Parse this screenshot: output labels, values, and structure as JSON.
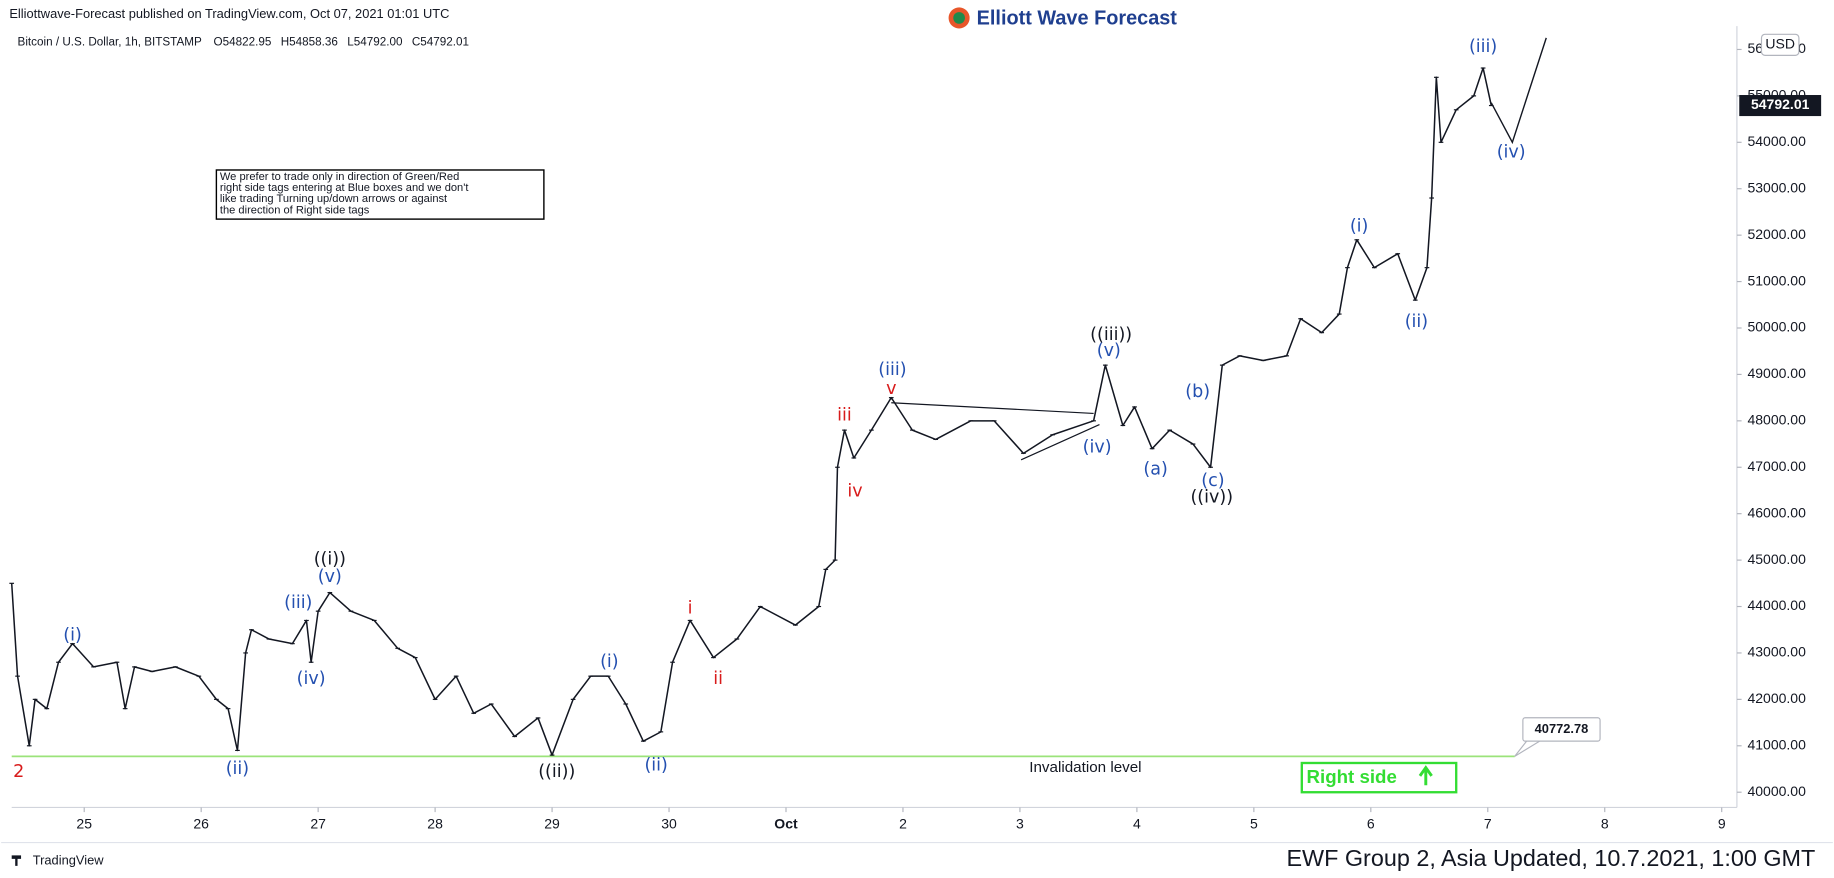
{
  "header": {
    "published": "Elliottwave-Forecast published on TradingView.com, Oct 07, 2021 01:01 UTC",
    "logo": "Elliott Wave Forecast",
    "symbol": "Bitcoin / U.S. Dollar, 1h, BITSTAMP",
    "ohlc": [
      "O54822.95",
      "H54858.36",
      "L54792.00",
      "C54792.01"
    ]
  },
  "note": [
    "We prefer to trade only in direction of Green/Red",
    "right side tags entering at Blue boxes and we don't",
    "like trading Turning up/down arrows or against",
    "the direction of Right side tags"
  ],
  "footer": {
    "brand": "TradingView",
    "update": "EWF Group 2, Asia Updated, 10.7.2021, 1:00 GMT"
  },
  "chart_data": {
    "type": "line",
    "color": "#131722",
    "grid": false,
    "currency": "USD",
    "x": [
      0.38,
      0.43,
      0.53,
      0.58,
      0.68,
      0.78,
      0.9,
      1.08,
      1.28,
      1.35,
      1.43,
      1.58,
      1.78,
      1.98,
      2.13,
      2.23,
      2.31,
      2.38,
      2.43,
      2.58,
      2.78,
      2.9,
      2.94,
      3.0,
      3.1,
      3.28,
      3.48,
      3.68,
      3.83,
      4.0,
      4.18,
      4.33,
      4.48,
      4.68,
      4.88,
      5.0,
      5.18,
      5.33,
      5.48,
      5.63,
      5.78,
      5.93,
      6.03,
      6.18,
      6.38,
      6.58,
      6.78,
      7.08,
      7.28,
      7.34,
      7.42,
      7.44,
      7.5,
      7.58,
      7.73,
      7.9,
      8.08,
      8.28,
      8.58,
      8.78,
      9.03,
      9.28,
      9.63,
      9.73,
      9.88,
      9.98,
      10.13,
      10.28,
      10.48,
      10.63,
      10.73,
      10.88,
      11.08,
      11.28,
      11.4,
      11.58,
      11.73,
      11.8,
      11.88,
      12.03,
      12.23,
      12.38,
      12.48,
      12.52,
      12.56,
      12.6,
      12.73,
      12.88,
      12.96,
      13.03
    ],
    "values": [
      44500,
      42500,
      41000,
      42000,
      41800,
      42800,
      43200,
      42700,
      42800,
      41800,
      42700,
      42600,
      42700,
      42500,
      42000,
      41800,
      40900,
      43000,
      43500,
      43300,
      43200,
      43700,
      42800,
      43900,
      44300,
      43900,
      43700,
      43100,
      42900,
      42000,
      42500,
      41700,
      41900,
      41200,
      41600,
      40800,
      42000,
      42500,
      42500,
      41900,
      41100,
      41300,
      42800,
      43700,
      42900,
      43300,
      44000,
      43600,
      44000,
      44800,
      45000,
      47000,
      47800,
      47200,
      47800,
      48500,
      47800,
      47600,
      48000,
      48000,
      47300,
      47700,
      48000,
      49200,
      47900,
      48300,
      47400,
      47800,
      47500,
      47000,
      49200,
      49400,
      49300,
      49400,
      50200,
      49900,
      50300,
      51300,
      51900,
      51300,
      51600,
      50600,
      51300,
      52800,
      55400,
      54000,
      54700,
      55000,
      55600,
      54792.01
    ],
    "projection": {
      "x": [
        13.03,
        13.21,
        13.5
      ],
      "values": [
        54850,
        54000,
        56250
      ]
    },
    "trendlines": [
      {
        "x": [
          7.9,
          9.63
        ],
        "values": [
          48390,
          48160
        ]
      },
      {
        "x": [
          9.01,
          9.68
        ],
        "values": [
          47160,
          47920
        ]
      }
    ],
    "last_price": 54792.01,
    "invalidation": {
      "value": 40772.78,
      "label": "Invalidation level",
      "color": "#9be37a"
    },
    "right_side": {
      "label": "Right side",
      "color": "#33dd33"
    },
    "waves": [
      {
        "text": "2",
        "x": 0.44,
        "price": 40430,
        "color": "#d81b1b"
      },
      {
        "text": "(i)",
        "x": 0.9,
        "price": 43380,
        "color": "#2450b0"
      },
      {
        "text": "(ii)",
        "x": 2.31,
        "price": 40500,
        "color": "#2450b0"
      },
      {
        "text": "(iii)",
        "x": 2.83,
        "price": 44080,
        "color": "#2450b0"
      },
      {
        "text": "(iv)",
        "x": 2.94,
        "price": 42440,
        "color": "#2450b0"
      },
      {
        "text": "(v)",
        "x": 3.1,
        "price": 44640,
        "color": "#2450b0"
      },
      {
        "text": "((i))",
        "x": 3.1,
        "price": 45010,
        "color": "#131722"
      },
      {
        "text": "((ii))",
        "x": 5.04,
        "price": 40430,
        "color": "#131722"
      },
      {
        "text": "(i)",
        "x": 5.49,
        "price": 42800,
        "color": "#2450b0"
      },
      {
        "text": "(ii)",
        "x": 5.89,
        "price": 40580,
        "color": "#2450b0"
      },
      {
        "text": "i",
        "x": 6.18,
        "price": 43960,
        "color": "#d81b1b"
      },
      {
        "text": "ii",
        "x": 6.42,
        "price": 42440,
        "color": "#d81b1b"
      },
      {
        "text": "iii",
        "x": 7.5,
        "price": 48110,
        "color": "#d81b1b"
      },
      {
        "text": "iv",
        "x": 7.59,
        "price": 46480,
        "color": "#d81b1b"
      },
      {
        "text": "v",
        "x": 7.9,
        "price": 48690,
        "color": "#d81b1b"
      },
      {
        "text": "(iii)",
        "x": 7.91,
        "price": 49100,
        "color": "#2450b0"
      },
      {
        "text": "(iv)",
        "x": 9.66,
        "price": 47430,
        "color": "#2450b0"
      },
      {
        "text": "(v)",
        "x": 9.76,
        "price": 49500,
        "color": "#2450b0"
      },
      {
        "text": "((iii))",
        "x": 9.78,
        "price": 49850,
        "color": "#131722"
      },
      {
        "text": "(a)",
        "x": 10.16,
        "price": 46950,
        "color": "#2450b0"
      },
      {
        "text": "(b)",
        "x": 10.52,
        "price": 48620,
        "color": "#2450b0"
      },
      {
        "text": "(c)",
        "x": 10.65,
        "price": 46700,
        "color": "#2450b0"
      },
      {
        "text": "((iv))",
        "x": 10.64,
        "price": 46350,
        "color": "#131722"
      },
      {
        "text": "(i)",
        "x": 11.9,
        "price": 52190,
        "color": "#2450b0"
      },
      {
        "text": "(ii)",
        "x": 12.39,
        "price": 50130,
        "color": "#2450b0"
      },
      {
        "text": "(iii)",
        "x": 12.96,
        "price": 56050,
        "color": "#2450b0"
      },
      {
        "text": "(iv)",
        "x": 13.2,
        "price": 53780,
        "color": "#2450b0"
      }
    ],
    "xlim": [
      0.38,
      15.13
    ],
    "xticks": [
      {
        "value": 1,
        "label": "25"
      },
      {
        "value": 2,
        "label": "26"
      },
      {
        "value": 3,
        "label": "27"
      },
      {
        "value": 4,
        "label": "28"
      },
      {
        "value": 5,
        "label": "29"
      },
      {
        "value": 6,
        "label": "30"
      },
      {
        "value": 7,
        "label": "Oct"
      },
      {
        "value": 8,
        "label": "2"
      },
      {
        "value": 9,
        "label": "3"
      },
      {
        "value": 10,
        "label": "4"
      },
      {
        "value": 11,
        "label": "5"
      },
      {
        "value": 12,
        "label": "6"
      },
      {
        "value": 13,
        "label": "7"
      },
      {
        "value": 14,
        "label": "8"
      },
      {
        "value": 15,
        "label": "9"
      }
    ],
    "ylim": [
      39672,
      56503
    ],
    "yticks": [
      {
        "value": 40000,
        "label": "40000.00"
      },
      {
        "value": 41000,
        "label": "41000.00"
      },
      {
        "value": 42000,
        "label": "42000.00"
      },
      {
        "value": 43000,
        "label": "43000.00"
      },
      {
        "value": 44000,
        "label": "44000.00"
      },
      {
        "value": 45000,
        "label": "45000.00"
      },
      {
        "value": 46000,
        "label": "46000.00"
      },
      {
        "value": 47000,
        "label": "47000.00"
      },
      {
        "value": 48000,
        "label": "48000.00"
      },
      {
        "value": 49000,
        "label": "49000.00"
      },
      {
        "value": 50000,
        "label": "50000.00"
      },
      {
        "value": 51000,
        "label": "51000.00"
      },
      {
        "value": 52000,
        "label": "52000.00"
      },
      {
        "value": 53000,
        "label": "53000.00"
      },
      {
        "value": 54000,
        "label": "54000.00"
      },
      {
        "value": 55000,
        "label": "55000.00"
      },
      {
        "value": 56000,
        "label": "56000.00"
      }
    ]
  }
}
